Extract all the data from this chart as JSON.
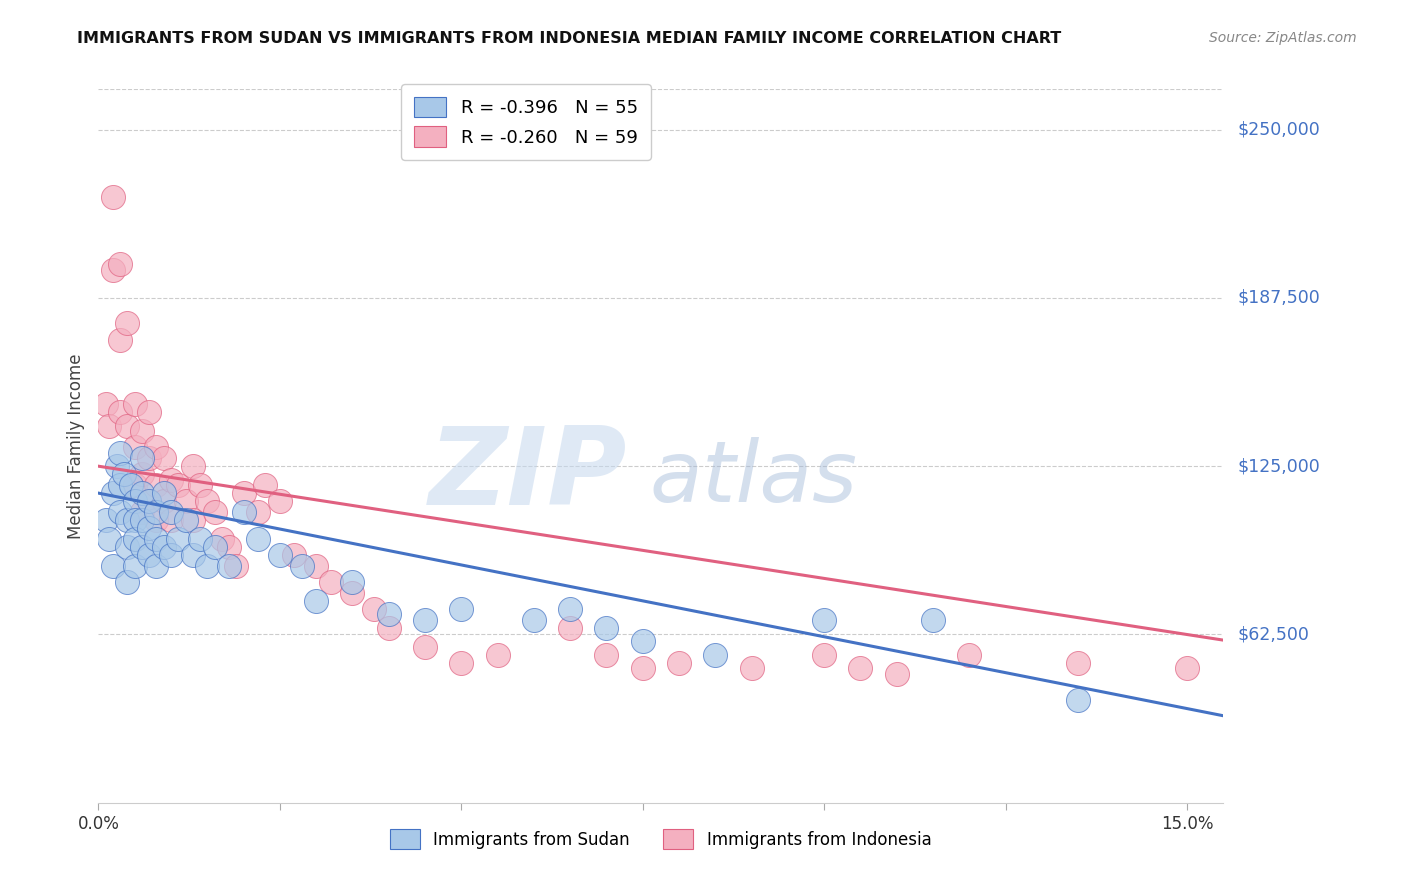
{
  "title": "IMMIGRANTS FROM SUDAN VS IMMIGRANTS FROM INDONESIA MEDIAN FAMILY INCOME CORRELATION CHART",
  "source": "Source: ZipAtlas.com",
  "ylabel": "Median Family Income",
  "yticks": [
    0,
    62500,
    125000,
    187500,
    250000
  ],
  "ytick_labels": [
    "",
    "$62,500",
    "$125,000",
    "$187,500",
    "$250,000"
  ],
  "ylim": [
    0,
    265000
  ],
  "xlim": [
    0.0,
    0.155
  ],
  "watermark_zip": "ZIP",
  "watermark_atlas": "atlas",
  "legend_sudan": "R = -0.396   N = 55",
  "legend_indonesia": "R = -0.260   N = 59",
  "legend_sudan_short": "Immigrants from Sudan",
  "legend_indonesia_short": "Immigrants from Indonesia",
  "sudan_color": "#a8c8e8",
  "indonesia_color": "#f4b0c0",
  "sudan_line_color": "#4472c4",
  "indonesia_line_color": "#e06080",
  "background_color": "#ffffff",
  "grid_color": "#cccccc",
  "ytick_color": "#4472c4",
  "sudan_points_x": [
    0.001,
    0.0015,
    0.002,
    0.002,
    0.0025,
    0.003,
    0.003,
    0.003,
    0.0035,
    0.004,
    0.004,
    0.004,
    0.0045,
    0.005,
    0.005,
    0.005,
    0.005,
    0.006,
    0.006,
    0.006,
    0.006,
    0.007,
    0.007,
    0.007,
    0.008,
    0.008,
    0.008,
    0.009,
    0.009,
    0.01,
    0.01,
    0.011,
    0.012,
    0.013,
    0.014,
    0.015,
    0.016,
    0.018,
    0.02,
    0.022,
    0.025,
    0.028,
    0.03,
    0.035,
    0.04,
    0.045,
    0.05,
    0.06,
    0.065,
    0.07,
    0.075,
    0.085,
    0.1,
    0.115,
    0.135
  ],
  "sudan_points_y": [
    105000,
    98000,
    115000,
    88000,
    125000,
    130000,
    118000,
    108000,
    122000,
    105000,
    95000,
    82000,
    118000,
    112000,
    105000,
    98000,
    88000,
    128000,
    115000,
    105000,
    95000,
    112000,
    102000,
    92000,
    108000,
    98000,
    88000,
    115000,
    95000,
    108000,
    92000,
    98000,
    105000,
    92000,
    98000,
    88000,
    95000,
    88000,
    108000,
    98000,
    92000,
    88000,
    75000,
    82000,
    70000,
    68000,
    72000,
    68000,
    72000,
    65000,
    60000,
    55000,
    68000,
    68000,
    38000
  ],
  "indonesia_points_x": [
    0.001,
    0.0015,
    0.002,
    0.002,
    0.003,
    0.003,
    0.003,
    0.004,
    0.004,
    0.005,
    0.005,
    0.005,
    0.006,
    0.006,
    0.006,
    0.007,
    0.007,
    0.007,
    0.008,
    0.008,
    0.008,
    0.009,
    0.009,
    0.01,
    0.01,
    0.011,
    0.012,
    0.013,
    0.013,
    0.014,
    0.015,
    0.016,
    0.017,
    0.018,
    0.019,
    0.02,
    0.022,
    0.023,
    0.025,
    0.027,
    0.03,
    0.032,
    0.035,
    0.038,
    0.04,
    0.045,
    0.05,
    0.055,
    0.065,
    0.07,
    0.075,
    0.08,
    0.09,
    0.1,
    0.105,
    0.11,
    0.12,
    0.135,
    0.15
  ],
  "indonesia_points_y": [
    148000,
    140000,
    225000,
    198000,
    200000,
    172000,
    145000,
    178000,
    140000,
    148000,
    132000,
    118000,
    138000,
    122000,
    108000,
    145000,
    128000,
    112000,
    132000,
    118000,
    105000,
    128000,
    112000,
    120000,
    105000,
    118000,
    112000,
    125000,
    105000,
    118000,
    112000,
    108000,
    98000,
    95000,
    88000,
    115000,
    108000,
    118000,
    112000,
    92000,
    88000,
    82000,
    78000,
    72000,
    65000,
    58000,
    52000,
    55000,
    65000,
    55000,
    50000,
    52000,
    50000,
    55000,
    50000,
    48000,
    55000,
    52000,
    50000
  ]
}
